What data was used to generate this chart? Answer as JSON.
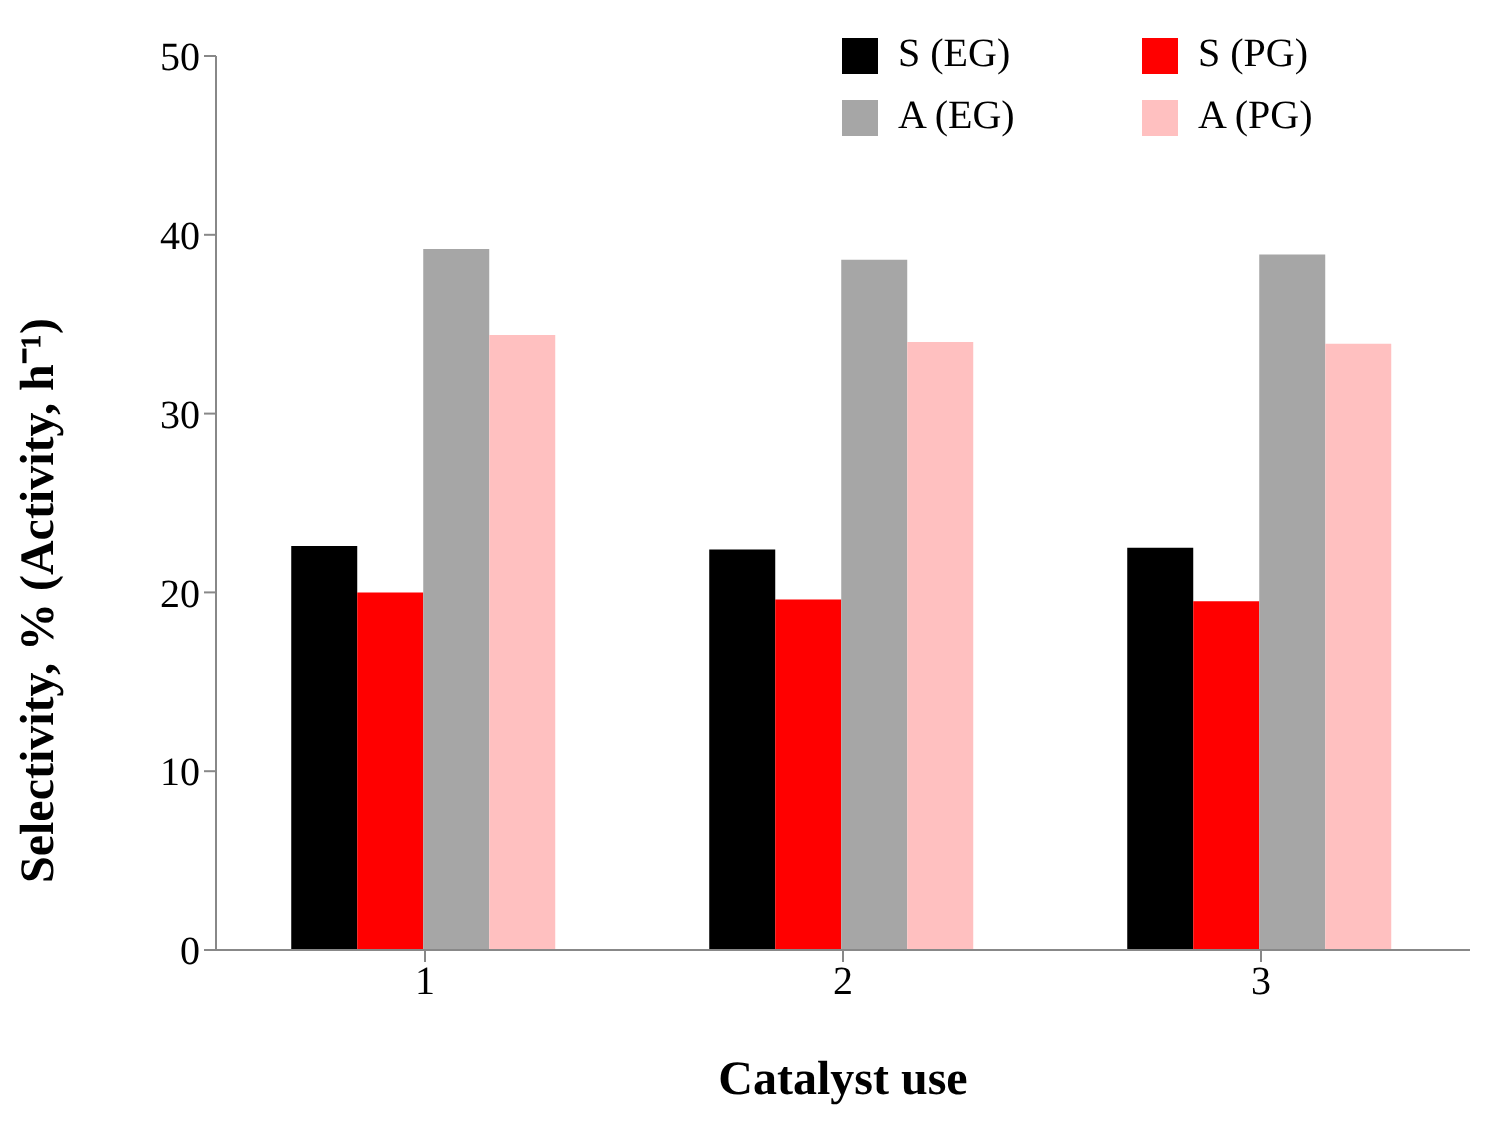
{
  "chart_data": {
    "type": "bar",
    "xlabel": "Catalyst use",
    "ylabel": "Selectivity, % (Activity, h⁻¹)",
    "categories": [
      "1",
      "2",
      "3"
    ],
    "series": [
      {
        "name": "S (EG)",
        "color": "#000000",
        "values": [
          22.6,
          22.4,
          22.5
        ]
      },
      {
        "name": "S (PG)",
        "color": "#ff0000",
        "values": [
          20.0,
          19.6,
          19.5
        ]
      },
      {
        "name": "A (EG)",
        "color": "#a6a6a6",
        "values": [
          39.2,
          38.6,
          38.9
        ]
      },
      {
        "name": "A (PG)",
        "color": "#ffc0c0",
        "values": [
          34.4,
          34.0,
          33.9
        ]
      }
    ],
    "ylim": [
      0,
      50
    ],
    "yticks": [
      0,
      10,
      20,
      30,
      40,
      50
    ],
    "grid": false,
    "legend": "top right"
  }
}
